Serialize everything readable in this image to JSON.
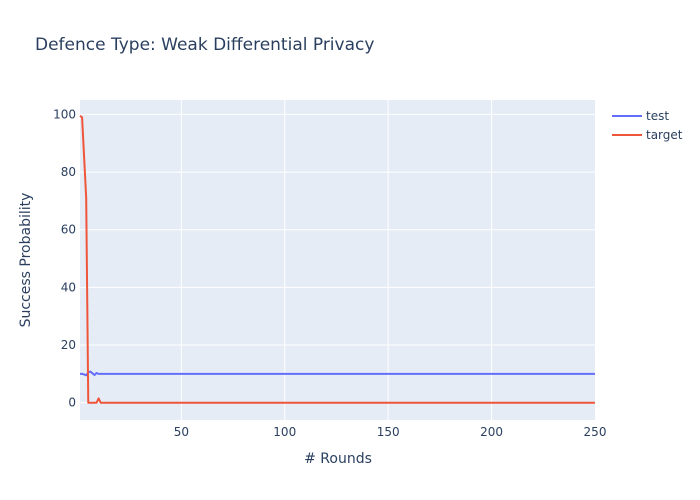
{
  "chart_data": {
    "type": "line",
    "title": "Defence Type: Weak Differential Privacy",
    "xlabel": "# Rounds",
    "ylabel": "Success Probability",
    "xlim": [
      1,
      250
    ],
    "ylim": [
      -6,
      105
    ],
    "xticks": [
      50,
      100,
      150,
      200,
      250
    ],
    "yticks": [
      0,
      20,
      40,
      60,
      80,
      100
    ],
    "grid": true,
    "legend_position": "top-right",
    "colors": {
      "test": "#636efa",
      "target": "#ef553b",
      "plot_bg": "#e5ecf6",
      "grid": "#ffffff",
      "text": "#2a3f5f"
    },
    "series": [
      {
        "name": "test",
        "x": [
          1,
          2,
          3,
          4,
          5,
          6,
          7,
          8,
          9,
          10,
          12,
          15,
          20,
          50,
          100,
          150,
          200,
          250
        ],
        "y": [
          10,
          10,
          9.8,
          9.5,
          10.5,
          10.8,
          10.2,
          9.6,
          10.3,
          10,
          10,
          10,
          10,
          10,
          10,
          10,
          10,
          10
        ]
      },
      {
        "name": "target",
        "x": [
          1,
          2,
          3,
          4,
          5,
          6,
          7,
          8,
          9,
          10,
          11,
          12,
          15,
          20,
          50,
          100,
          150,
          200,
          250
        ],
        "y": [
          99.5,
          99,
          85,
          71,
          0,
          0,
          0,
          0,
          0,
          1.5,
          0,
          0,
          0,
          0,
          0,
          0,
          0,
          0,
          0
        ]
      }
    ]
  }
}
